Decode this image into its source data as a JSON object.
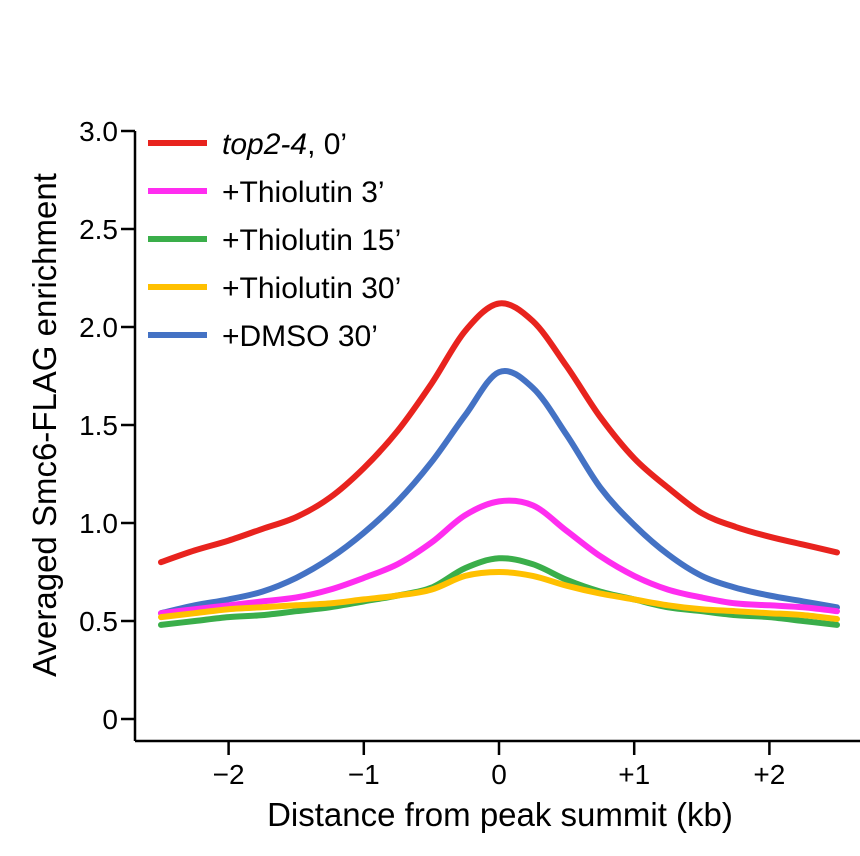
{
  "chart_data": {
    "type": "line",
    "title": "",
    "xlabel": "Distance from peak summit (kb)",
    "ylabel": "Averaged Smc6-FLAG enrichment",
    "xlim": [
      -2.5,
      2.5
    ],
    "ylim": [
      0,
      3.0
    ],
    "grid": false,
    "legend_position": "top-left",
    "x_ticks": [
      {
        "value": -2,
        "label": "−2"
      },
      {
        "value": -1,
        "label": "−1"
      },
      {
        "value": 0,
        "label": "0"
      },
      {
        "value": 1,
        "label": "+1"
      },
      {
        "value": 2,
        "label": "+2"
      }
    ],
    "y_ticks": [
      {
        "value": 0,
        "label": "0"
      },
      {
        "value": 0.5,
        "label": "0.5"
      },
      {
        "value": 1.0,
        "label": "1.0"
      },
      {
        "value": 1.5,
        "label": "1.5"
      },
      {
        "value": 2.0,
        "label": "2.0"
      },
      {
        "value": 2.5,
        "label": "2.5"
      },
      {
        "value": 3.0,
        "label": "3.0"
      }
    ],
    "x": [
      -2.5,
      -2.25,
      -2.0,
      -1.75,
      -1.5,
      -1.25,
      -1.0,
      -0.75,
      -0.5,
      -0.25,
      0.0,
      0.25,
      0.5,
      0.75,
      1.0,
      1.25,
      1.5,
      1.75,
      2.0,
      2.25,
      2.5
    ],
    "series": [
      {
        "name": "+DMSO 30’",
        "name_italic": "",
        "name_rest": "+DMSO 30’",
        "color": "#4472C4",
        "values": [
          0.54,
          0.58,
          0.61,
          0.65,
          0.72,
          0.82,
          0.95,
          1.11,
          1.31,
          1.55,
          1.77,
          1.69,
          1.45,
          1.18,
          0.99,
          0.84,
          0.73,
          0.67,
          0.63,
          0.6,
          0.57
        ]
      },
      {
        "name": "+Thiolutin 3’",
        "name_italic": "",
        "name_rest": "+Thiolutin 3’",
        "color": "#FF2DF0",
        "values": [
          0.54,
          0.56,
          0.58,
          0.6,
          0.62,
          0.66,
          0.72,
          0.79,
          0.9,
          1.04,
          1.11,
          1.09,
          0.96,
          0.83,
          0.73,
          0.66,
          0.62,
          0.59,
          0.58,
          0.57,
          0.55
        ]
      },
      {
        "name": "+Thiolutin 15’",
        "name_italic": "",
        "name_rest": "+Thiolutin 15’",
        "color": "#3AAE4A",
        "values": [
          0.48,
          0.5,
          0.52,
          0.53,
          0.55,
          0.57,
          0.6,
          0.63,
          0.67,
          0.77,
          0.82,
          0.79,
          0.71,
          0.65,
          0.61,
          0.57,
          0.55,
          0.53,
          0.52,
          0.5,
          0.48
        ]
      },
      {
        "name": "+Thiolutin 30’",
        "name_italic": "",
        "name_rest": "+Thiolutin 30’",
        "color": "#FFC000",
        "values": [
          0.52,
          0.54,
          0.56,
          0.57,
          0.58,
          0.59,
          0.61,
          0.63,
          0.66,
          0.73,
          0.75,
          0.73,
          0.68,
          0.64,
          0.61,
          0.58,
          0.56,
          0.55,
          0.54,
          0.53,
          0.51
        ]
      },
      {
        "name": "top2-4, 0’",
        "name_italic": "top2-4",
        "name_rest": ", 0’",
        "color": "#E8231E",
        "values": [
          0.8,
          0.86,
          0.91,
          0.97,
          1.03,
          1.13,
          1.28,
          1.47,
          1.71,
          1.98,
          2.12,
          2.03,
          1.8,
          1.54,
          1.33,
          1.18,
          1.05,
          0.98,
          0.93,
          0.89,
          0.85
        ]
      }
    ],
    "legend_order": [
      4,
      1,
      2,
      3,
      0
    ]
  }
}
